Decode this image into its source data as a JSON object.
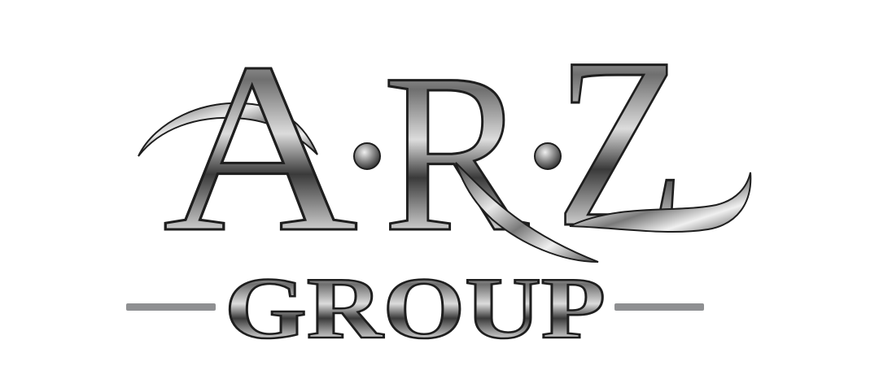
{
  "logo": {
    "monogram": {
      "letter_a": "A",
      "letter_r": "R",
      "letter_z": "Z"
    },
    "wordmark": "GROUP"
  },
  "colors": {
    "background": "#ffffff",
    "metal_light": "#f2f2f2",
    "metal_mid": "#9a9a9a",
    "metal_dark": "#2b2b2b",
    "outline": "#1e1e1e",
    "rule": "#8f9092"
  }
}
